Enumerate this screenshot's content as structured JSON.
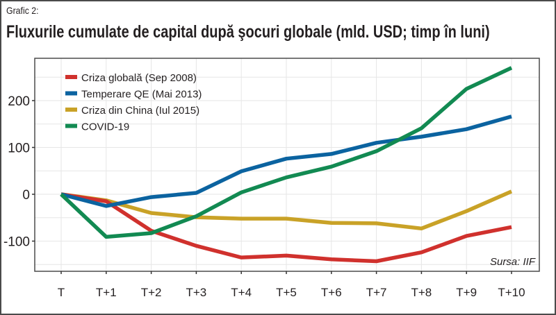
{
  "caption": "Grafic 2:",
  "title": "Fluxurile cumulate de capital după şocuri globale (mld. USD; timp în luni)",
  "source": "Sursa: IIF",
  "chart_data": {
    "type": "line",
    "title": "Fluxurile cumulate de capital după şocuri globale (mld. USD; timp în luni)",
    "xlabel": "",
    "ylabel": "",
    "categories": [
      "T",
      "T+1",
      "T+2",
      "T+3",
      "T+4",
      "T+5",
      "T+6",
      "T+7",
      "T+8",
      "T+9",
      "T+10"
    ],
    "yticks": [
      -100,
      0,
      100,
      200
    ],
    "ylim": [
      -160,
      290
    ],
    "grid": true,
    "legend_position": "top-left",
    "series": [
      {
        "name": "Criza globală (Sep 2008)",
        "color": "#d0312d",
        "values": [
          0,
          -15,
          -78,
          -110,
          -135,
          -131,
          -139,
          -143,
          -124,
          -89,
          -70
        ]
      },
      {
        "name": "Temperare QE (Mai 2013)",
        "color": "#0b63a0",
        "values": [
          0,
          -25,
          -6,
          3,
          49,
          76,
          86,
          110,
          123,
          139,
          166
        ]
      },
      {
        "name": "Criza din China (Iul 2015)",
        "color": "#c9a227",
        "values": [
          0,
          -13,
          -40,
          -49,
          -52,
          -52,
          -61,
          -62,
          -73,
          -36,
          6
        ]
      },
      {
        "name": "COVID-19",
        "color": "#128a52",
        "values": [
          0,
          -91,
          -83,
          -47,
          4,
          36,
          59,
          92,
          141,
          225,
          270
        ]
      }
    ],
    "annotations": [
      "Sursa: IIF"
    ]
  }
}
